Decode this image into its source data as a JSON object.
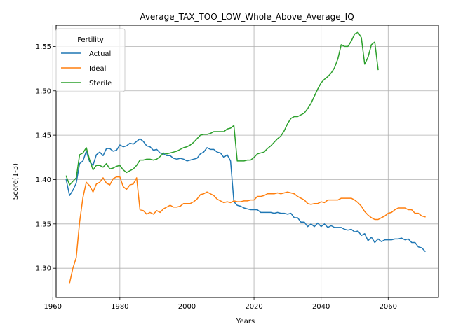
{
  "chart_data": {
    "type": "line",
    "title": "Average_TAX_TOO_LOW_Whole_Above_Average_IQ",
    "xlabel": "Years",
    "ylabel": "Score(1-3)",
    "xlim": [
      1961,
      2075
    ],
    "ylim": [
      1.267,
      1.574
    ],
    "xticks": [
      1960,
      1980,
      2000,
      2020,
      2040,
      2060
    ],
    "yticks": [
      1.3,
      1.35,
      1.4,
      1.45,
      1.5,
      1.55
    ],
    "ytick_labels": [
      "1.30",
      "1.35",
      "1.40",
      "1.45",
      "1.50",
      "1.55"
    ],
    "grid": true,
    "legend": {
      "title": "Fertility",
      "placement": "top-left"
    },
    "series": [
      {
        "name": "Actual",
        "color": "#1f77b4",
        "points": [
          [
            1964,
            1.4
          ],
          [
            1965,
            1.382
          ],
          [
            1966,
            1.388
          ],
          [
            1967,
            1.396
          ],
          [
            1968,
            1.418
          ],
          [
            1969,
            1.421
          ],
          [
            1970,
            1.432
          ],
          [
            1971,
            1.42
          ],
          [
            1972,
            1.416
          ],
          [
            1973,
            1.428
          ],
          [
            1974,
            1.431
          ],
          [
            1975,
            1.427
          ],
          [
            1976,
            1.435
          ],
          [
            1977,
            1.435
          ],
          [
            1978,
            1.432
          ],
          [
            1979,
            1.433
          ],
          [
            1980,
            1.439
          ],
          [
            1981,
            1.437
          ],
          [
            1982,
            1.438
          ],
          [
            1983,
            1.441
          ],
          [
            1984,
            1.44
          ],
          [
            1985,
            1.443
          ],
          [
            1986,
            1.446
          ],
          [
            1987,
            1.443
          ],
          [
            1988,
            1.438
          ],
          [
            1989,
            1.437
          ],
          [
            1990,
            1.433
          ],
          [
            1991,
            1.434
          ],
          [
            1992,
            1.43
          ],
          [
            1993,
            1.429
          ],
          [
            1994,
            1.427
          ],
          [
            1995,
            1.427
          ],
          [
            1996,
            1.424
          ],
          [
            1997,
            1.423
          ],
          [
            1998,
            1.424
          ],
          [
            1999,
            1.423
          ],
          [
            2000,
            1.421
          ],
          [
            2001,
            1.422
          ],
          [
            2002,
            1.423
          ],
          [
            2003,
            1.424
          ],
          [
            2004,
            1.429
          ],
          [
            2005,
            1.431
          ],
          [
            2006,
            1.436
          ],
          [
            2007,
            1.434
          ],
          [
            2008,
            1.434
          ],
          [
            2009,
            1.431
          ],
          [
            2010,
            1.43
          ],
          [
            2011,
            1.425
          ],
          [
            2012,
            1.428
          ],
          [
            2013,
            1.421
          ],
          [
            2014,
            1.375
          ],
          [
            2015,
            1.371
          ],
          [
            2016,
            1.37
          ],
          [
            2017,
            1.368
          ],
          [
            2018,
            1.367
          ],
          [
            2019,
            1.366
          ],
          [
            2020,
            1.366
          ],
          [
            2021,
            1.366
          ],
          [
            2022,
            1.363
          ],
          [
            2023,
            1.363
          ],
          [
            2024,
            1.363
          ],
          [
            2025,
            1.363
          ],
          [
            2026,
            1.362
          ],
          [
            2027,
            1.363
          ],
          [
            2028,
            1.362
          ],
          [
            2029,
            1.362
          ],
          [
            2030,
            1.361
          ],
          [
            2031,
            1.362
          ],
          [
            2032,
            1.357
          ],
          [
            2033,
            1.357
          ],
          [
            2034,
            1.352
          ],
          [
            2035,
            1.352
          ],
          [
            2036,
            1.347
          ],
          [
            2037,
            1.35
          ],
          [
            2038,
            1.347
          ],
          [
            2039,
            1.351
          ],
          [
            2040,
            1.347
          ],
          [
            2041,
            1.35
          ],
          [
            2042,
            1.346
          ],
          [
            2043,
            1.348
          ],
          [
            2044,
            1.346
          ],
          [
            2045,
            1.346
          ],
          [
            2046,
            1.346
          ],
          [
            2047,
            1.344
          ],
          [
            2048,
            1.343
          ],
          [
            2049,
            1.344
          ],
          [
            2050,
            1.341
          ],
          [
            2051,
            1.342
          ],
          [
            2052,
            1.337
          ],
          [
            2053,
            1.339
          ],
          [
            2054,
            1.331
          ],
          [
            2055,
            1.335
          ],
          [
            2056,
            1.329
          ],
          [
            2057,
            1.333
          ],
          [
            2058,
            1.33
          ],
          [
            2059,
            1.332
          ],
          [
            2060,
            1.332
          ],
          [
            2061,
            1.332
          ],
          [
            2062,
            1.333
          ],
          [
            2063,
            1.333
          ],
          [
            2064,
            1.334
          ],
          [
            2065,
            1.332
          ],
          [
            2066,
            1.333
          ],
          [
            2067,
            1.329
          ],
          [
            2068,
            1.329
          ],
          [
            2069,
            1.324
          ],
          [
            2070,
            1.323
          ],
          [
            2071,
            1.319
          ]
        ]
      },
      {
        "name": "Ideal",
        "color": "#ff7f0e",
        "points": [
          [
            1965,
            1.283
          ],
          [
            1966,
            1.3
          ],
          [
            1967,
            1.312
          ],
          [
            1968,
            1.352
          ],
          [
            1969,
            1.38
          ],
          [
            1970,
            1.397
          ],
          [
            1971,
            1.393
          ],
          [
            1972,
            1.386
          ],
          [
            1973,
            1.395
          ],
          [
            1974,
            1.397
          ],
          [
            1975,
            1.402
          ],
          [
            1976,
            1.396
          ],
          [
            1977,
            1.394
          ],
          [
            1978,
            1.401
          ],
          [
            1979,
            1.403
          ],
          [
            1980,
            1.403
          ],
          [
            1981,
            1.392
          ],
          [
            1982,
            1.389
          ],
          [
            1983,
            1.394
          ],
          [
            1984,
            1.395
          ],
          [
            1985,
            1.402
          ],
          [
            1986,
            1.366
          ],
          [
            1987,
            1.365
          ],
          [
            1988,
            1.361
          ],
          [
            1989,
            1.363
          ],
          [
            1990,
            1.361
          ],
          [
            1991,
            1.365
          ],
          [
            1992,
            1.363
          ],
          [
            1993,
            1.367
          ],
          [
            1994,
            1.369
          ],
          [
            1995,
            1.371
          ],
          [
            1996,
            1.369
          ],
          [
            1997,
            1.369
          ],
          [
            1998,
            1.37
          ],
          [
            1999,
            1.373
          ],
          [
            2000,
            1.373
          ],
          [
            2001,
            1.373
          ],
          [
            2002,
            1.375
          ],
          [
            2003,
            1.378
          ],
          [
            2004,
            1.383
          ],
          [
            2005,
            1.384
          ],
          [
            2006,
            1.386
          ],
          [
            2007,
            1.384
          ],
          [
            2008,
            1.382
          ],
          [
            2009,
            1.378
          ],
          [
            2010,
            1.376
          ],
          [
            2011,
            1.374
          ],
          [
            2012,
            1.375
          ],
          [
            2013,
            1.374
          ],
          [
            2014,
            1.376
          ],
          [
            2015,
            1.375
          ],
          [
            2016,
            1.375
          ],
          [
            2017,
            1.376
          ],
          [
            2018,
            1.376
          ],
          [
            2019,
            1.377
          ],
          [
            2020,
            1.377
          ],
          [
            2021,
            1.381
          ],
          [
            2022,
            1.381
          ],
          [
            2023,
            1.382
          ],
          [
            2024,
            1.384
          ],
          [
            2025,
            1.384
          ],
          [
            2026,
            1.384
          ],
          [
            2027,
            1.385
          ],
          [
            2028,
            1.384
          ],
          [
            2029,
            1.385
          ],
          [
            2030,
            1.386
          ],
          [
            2031,
            1.385
          ],
          [
            2032,
            1.384
          ],
          [
            2033,
            1.381
          ],
          [
            2034,
            1.379
          ],
          [
            2035,
            1.377
          ],
          [
            2036,
            1.373
          ],
          [
            2037,
            1.372
          ],
          [
            2038,
            1.373
          ],
          [
            2039,
            1.373
          ],
          [
            2040,
            1.375
          ],
          [
            2041,
            1.374
          ],
          [
            2042,
            1.377
          ],
          [
            2043,
            1.377
          ],
          [
            2044,
            1.377
          ],
          [
            2045,
            1.377
          ],
          [
            2046,
            1.379
          ],
          [
            2047,
            1.379
          ],
          [
            2048,
            1.379
          ],
          [
            2049,
            1.379
          ],
          [
            2050,
            1.377
          ],
          [
            2051,
            1.374
          ],
          [
            2052,
            1.37
          ],
          [
            2053,
            1.364
          ],
          [
            2054,
            1.36
          ],
          [
            2055,
            1.357
          ],
          [
            2056,
            1.355
          ],
          [
            2057,
            1.355
          ],
          [
            2058,
            1.357
          ],
          [
            2059,
            1.359
          ],
          [
            2060,
            1.362
          ],
          [
            2061,
            1.363
          ],
          [
            2062,
            1.366
          ],
          [
            2063,
            1.368
          ],
          [
            2064,
            1.368
          ],
          [
            2065,
            1.368
          ],
          [
            2066,
            1.366
          ],
          [
            2067,
            1.366
          ],
          [
            2068,
            1.362
          ],
          [
            2069,
            1.362
          ],
          [
            2070,
            1.359
          ],
          [
            2071,
            1.358
          ]
        ]
      },
      {
        "name": "Sterile",
        "color": "#2ca02c",
        "points": [
          [
            1964,
            1.404
          ],
          [
            1965,
            1.394
          ],
          [
            1966,
            1.398
          ],
          [
            1967,
            1.402
          ],
          [
            1968,
            1.428
          ],
          [
            1969,
            1.43
          ],
          [
            1970,
            1.436
          ],
          [
            1971,
            1.422
          ],
          [
            1972,
            1.411
          ],
          [
            1973,
            1.416
          ],
          [
            1974,
            1.416
          ],
          [
            1975,
            1.414
          ],
          [
            1976,
            1.418
          ],
          [
            1977,
            1.412
          ],
          [
            1978,
            1.413
          ],
          [
            1979,
            1.415
          ],
          [
            1980,
            1.416
          ],
          [
            1981,
            1.411
          ],
          [
            1982,
            1.408
          ],
          [
            1983,
            1.41
          ],
          [
            1984,
            1.412
          ],
          [
            1985,
            1.416
          ],
          [
            1986,
            1.422
          ],
          [
            1987,
            1.422
          ],
          [
            1988,
            1.423
          ],
          [
            1989,
            1.423
          ],
          [
            1990,
            1.422
          ],
          [
            1991,
            1.423
          ],
          [
            1992,
            1.426
          ],
          [
            1993,
            1.43
          ],
          [
            1994,
            1.429
          ],
          [
            1995,
            1.43
          ],
          [
            1996,
            1.431
          ],
          [
            1997,
            1.432
          ],
          [
            1998,
            1.434
          ],
          [
            1999,
            1.436
          ],
          [
            2000,
            1.437
          ],
          [
            2001,
            1.439
          ],
          [
            2002,
            1.442
          ],
          [
            2003,
            1.446
          ],
          [
            2004,
            1.45
          ],
          [
            2005,
            1.451
          ],
          [
            2006,
            1.451
          ],
          [
            2007,
            1.452
          ],
          [
            2008,
            1.454
          ],
          [
            2009,
            1.454
          ],
          [
            2010,
            1.454
          ],
          [
            2011,
            1.454
          ],
          [
            2012,
            1.457
          ],
          [
            2013,
            1.458
          ],
          [
            2014,
            1.461
          ],
          [
            2015,
            1.421
          ],
          [
            2016,
            1.421
          ],
          [
            2017,
            1.421
          ],
          [
            2018,
            1.422
          ],
          [
            2019,
            1.422
          ],
          [
            2020,
            1.425
          ],
          [
            2021,
            1.429
          ],
          [
            2022,
            1.43
          ],
          [
            2023,
            1.431
          ],
          [
            2024,
            1.435
          ],
          [
            2025,
            1.438
          ],
          [
            2026,
            1.442
          ],
          [
            2027,
            1.446
          ],
          [
            2028,
            1.449
          ],
          [
            2029,
            1.455
          ],
          [
            2030,
            1.463
          ],
          [
            2031,
            1.469
          ],
          [
            2032,
            1.471
          ],
          [
            2033,
            1.471
          ],
          [
            2034,
            1.473
          ],
          [
            2035,
            1.475
          ],
          [
            2036,
            1.48
          ],
          [
            2037,
            1.486
          ],
          [
            2038,
            1.494
          ],
          [
            2039,
            1.502
          ],
          [
            2040,
            1.509
          ],
          [
            2041,
            1.513
          ],
          [
            2042,
            1.516
          ],
          [
            2043,
            1.52
          ],
          [
            2044,
            1.526
          ],
          [
            2045,
            1.536
          ],
          [
            2046,
            1.552
          ],
          [
            2047,
            1.55
          ],
          [
            2048,
            1.55
          ],
          [
            2049,
            1.556
          ],
          [
            2050,
            1.564
          ],
          [
            2051,
            1.566
          ],
          [
            2052,
            1.56
          ],
          [
            2053,
            1.53
          ],
          [
            2054,
            1.538
          ],
          [
            2055,
            1.552
          ],
          [
            2056,
            1.555
          ],
          [
            2057,
            1.524
          ]
        ]
      }
    ]
  }
}
